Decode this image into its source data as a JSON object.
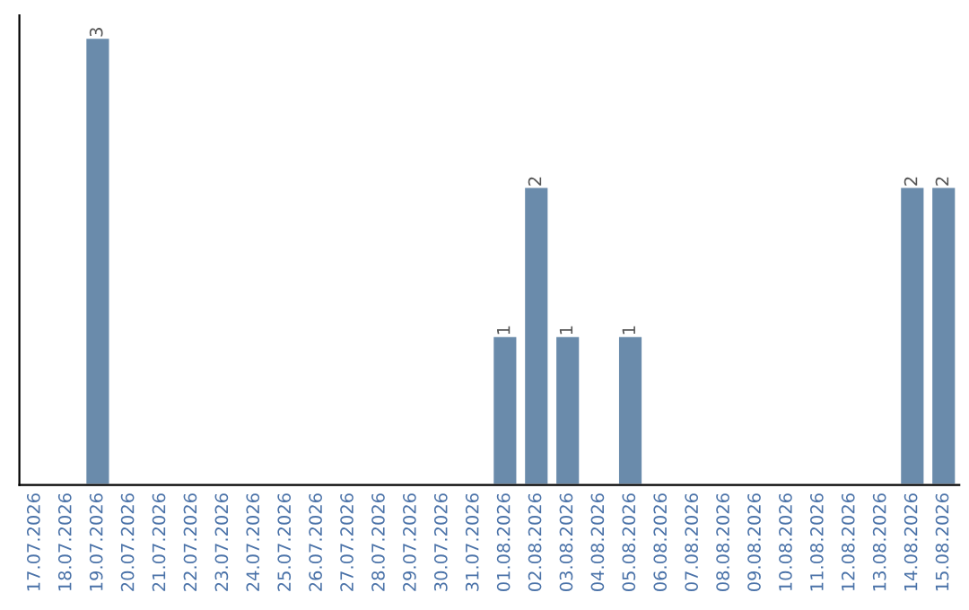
{
  "chart_data": {
    "type": "bar",
    "categories": [
      "17.07.2026",
      "18.07.2026",
      "19.07.2026",
      "20.07.2026",
      "21.07.2026",
      "22.07.2026",
      "23.07.2026",
      "24.07.2026",
      "25.07.2026",
      "26.07.2026",
      "27.07.2026",
      "28.07.2026",
      "29.07.2026",
      "30.07.2026",
      "31.07.2026",
      "01.08.2026",
      "02.08.2026",
      "03.08.2026",
      "04.08.2026",
      "05.08.2026",
      "06.08.2026",
      "07.08.2026",
      "08.08.2026",
      "09.08.2026",
      "10.08.2026",
      "11.08.2026",
      "12.08.2026",
      "13.08.2026",
      "14.08.2026",
      "15.08.2026"
    ],
    "values": [
      null,
      null,
      3,
      null,
      null,
      null,
      null,
      null,
      null,
      null,
      null,
      null,
      null,
      null,
      null,
      1,
      2,
      1,
      null,
      1,
      null,
      null,
      null,
      null,
      null,
      null,
      null,
      null,
      2,
      2
    ],
    "value_labels": [
      null,
      null,
      "3",
      null,
      null,
      null,
      null,
      null,
      null,
      null,
      null,
      null,
      null,
      null,
      null,
      "1",
      "2",
      "1",
      null,
      "1",
      null,
      null,
      null,
      null,
      null,
      null,
      null,
      null,
      "2",
      "2"
    ],
    "color": "#6a8bab",
    "grid": false,
    "legend": false
  }
}
